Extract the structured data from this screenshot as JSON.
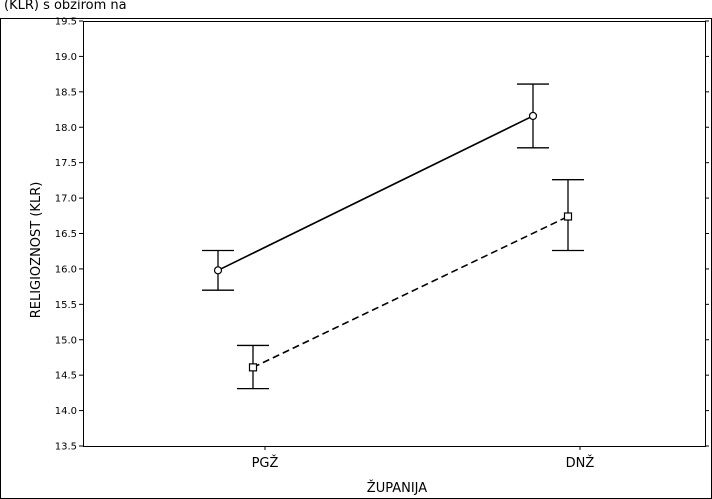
{
  "chart_data": {
    "type": "line",
    "xlabel": "ŽUPANIJA",
    "ylabel": "RELIGIOZNOST (KLR)",
    "categories": [
      "PGŽ",
      "DNŽ"
    ],
    "ylim": [
      13.5,
      19.5
    ],
    "yticks": [
      "13.5",
      "14.0",
      "14.5",
      "15.0",
      "15.5",
      "16.0",
      "16.5",
      "17.0",
      "17.5",
      "18.0",
      "18.5",
      "19.0",
      "19.5"
    ],
    "grid": false,
    "series": [
      {
        "style": "solid",
        "marker": "circle",
        "values": [
          15.98,
          18.16
        ],
        "lower": [
          15.7,
          17.71
        ],
        "upper": [
          16.26,
          18.61
        ]
      },
      {
        "style": "dashed",
        "marker": "square",
        "values": [
          14.61,
          16.74
        ],
        "lower": [
          14.31,
          16.26
        ],
        "upper": [
          14.92,
          17.26
        ]
      }
    ],
    "header_fragment": "(KLR) s obzirom na"
  }
}
